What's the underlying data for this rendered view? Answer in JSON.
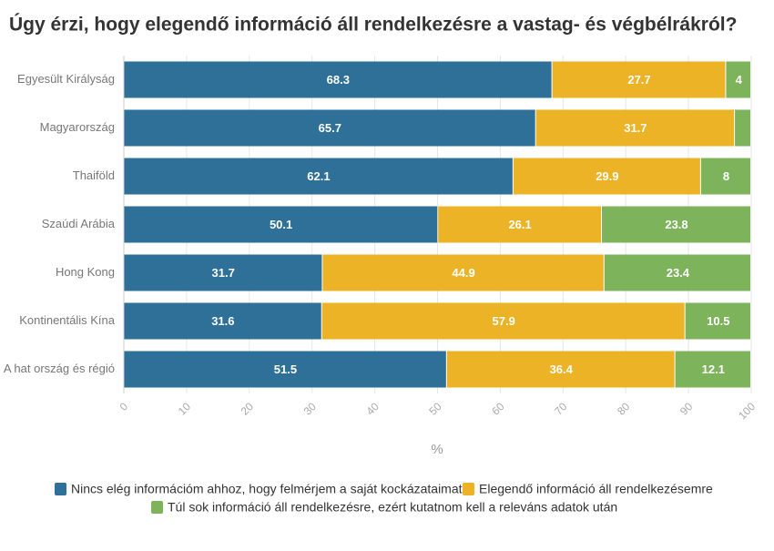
{
  "chart_data": {
    "type": "stacked-bar-horizontal",
    "title": "Úgy érzi, hogy elegendő információ áll rendelkezésre a vastag- és végbélrákról?",
    "categories": [
      "Egyesült Királyság",
      "Magyarország",
      "Thaiföld",
      "Szaúdi Arábia",
      "Hong Kong",
      "Kontinentális Kína",
      "A hat ország és régió"
    ],
    "series": [
      {
        "name": "Nincs elég információm ahhoz, hogy felmérjem a saját kockázataimat",
        "color": "#2e7098",
        "values": [
          68.3,
          65.7,
          62.1,
          50.1,
          31.7,
          31.6,
          51.5
        ]
      },
      {
        "name": "Elegendő információ áll rendelkezésemre",
        "color": "#ebb325",
        "values": [
          27.7,
          31.7,
          29.9,
          26.1,
          44.9,
          57.9,
          36.4
        ]
      },
      {
        "name": "Túl sok információ áll rendelkezésre, ezért kutatnom kell a releváns adatok után",
        "color": "#7db35b",
        "values": [
          4,
          2.6,
          8,
          23.8,
          23.4,
          10.5,
          12.1
        ]
      }
    ],
    "xlabel": "%",
    "xlim": [
      0,
      100
    ],
    "xticks": [
      0,
      10,
      20,
      30,
      40,
      50,
      60,
      70,
      80,
      90,
      100
    ],
    "grid": true
  }
}
